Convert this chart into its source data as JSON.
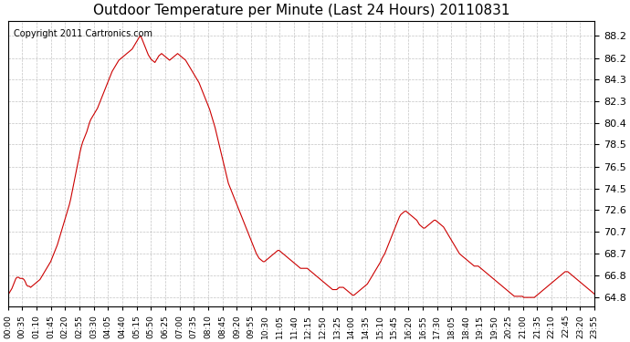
{
  "title": "Outdoor Temperature per Minute (Last 24 Hours) 20110831",
  "copyright": "Copyright 2011 Cartronics.com",
  "line_color": "#cc0000",
  "background_color": "#ffffff",
  "grid_color": "#aaaaaa",
  "yticks": [
    64.8,
    66.8,
    68.7,
    70.7,
    72.6,
    74.5,
    76.5,
    78.5,
    80.4,
    82.3,
    84.3,
    86.2,
    88.2
  ],
  "ylim": [
    64.0,
    89.5
  ],
  "xtick_labels": [
    "00:00",
    "00:35",
    "01:10",
    "01:45",
    "02:20",
    "02:55",
    "03:30",
    "04:05",
    "04:40",
    "05:15",
    "05:50",
    "06:25",
    "07:00",
    "07:35",
    "08:10",
    "08:45",
    "09:20",
    "09:55",
    "10:30",
    "11:05",
    "11:40",
    "12:15",
    "12:50",
    "13:25",
    "14:00",
    "14:35",
    "15:10",
    "15:45",
    "16:20",
    "16:55",
    "17:30",
    "18:05",
    "18:40",
    "19:15",
    "19:50",
    "20:25",
    "21:00",
    "21:35",
    "22:10",
    "22:45",
    "23:20",
    "23:55"
  ],
  "curve": [
    65.0,
    65.2,
    65.4,
    65.6,
    65.9,
    66.2,
    66.5,
    66.6,
    66.6,
    66.5,
    66.5,
    66.5,
    66.4,
    66.2,
    65.9,
    65.8,
    65.8,
    65.7,
    65.8,
    65.9,
    66.0,
    66.1,
    66.2,
    66.3,
    66.4,
    66.6,
    66.8,
    67.0,
    67.2,
    67.4,
    67.6,
    67.8,
    68.0,
    68.3,
    68.6,
    68.9,
    69.2,
    69.5,
    69.9,
    70.3,
    70.7,
    71.1,
    71.5,
    71.9,
    72.3,
    72.7,
    73.1,
    73.6,
    74.2,
    74.8,
    75.4,
    76.0,
    76.6,
    77.2,
    77.8,
    78.3,
    78.7,
    79.0,
    79.3,
    79.6,
    80.0,
    80.4,
    80.7,
    80.9,
    81.1,
    81.3,
    81.5,
    81.7,
    82.0,
    82.3,
    82.6,
    82.9,
    83.2,
    83.5,
    83.8,
    84.1,
    84.4,
    84.7,
    85.0,
    85.2,
    85.4,
    85.6,
    85.8,
    86.0,
    86.1,
    86.2,
    86.3,
    86.4,
    86.5,
    86.6,
    86.7,
    86.8,
    86.9,
    87.0,
    87.2,
    87.4,
    87.6,
    87.8,
    88.0,
    88.2,
    88.0,
    87.7,
    87.4,
    87.1,
    86.8,
    86.5,
    86.3,
    86.1,
    86.0,
    85.9,
    85.8,
    86.0,
    86.2,
    86.4,
    86.5,
    86.6,
    86.5,
    86.4,
    86.3,
    86.2,
    86.1,
    86.0,
    86.1,
    86.2,
    86.3,
    86.4,
    86.5,
    86.6,
    86.5,
    86.4,
    86.3,
    86.2,
    86.1,
    86.0,
    85.8,
    85.6,
    85.4,
    85.2,
    85.0,
    84.8,
    84.6,
    84.4,
    84.2,
    84.0,
    83.7,
    83.4,
    83.1,
    82.8,
    82.5,
    82.2,
    81.9,
    81.6,
    81.2,
    80.8,
    80.4,
    80.0,
    79.5,
    79.0,
    78.5,
    78.0,
    77.5,
    77.0,
    76.5,
    76.0,
    75.5,
    75.0,
    74.7,
    74.4,
    74.1,
    73.8,
    73.5,
    73.2,
    72.9,
    72.6,
    72.3,
    72.0,
    71.7,
    71.4,
    71.1,
    70.8,
    70.5,
    70.2,
    69.9,
    69.6,
    69.3,
    69.0,
    68.7,
    68.5,
    68.3,
    68.2,
    68.1,
    68.0,
    68.0,
    68.1,
    68.2,
    68.3,
    68.4,
    68.5,
    68.6,
    68.7,
    68.8,
    68.9,
    69.0,
    69.0,
    68.9,
    68.8,
    68.7,
    68.6,
    68.5,
    68.4,
    68.3,
    68.2,
    68.1,
    68.0,
    67.9,
    67.8,
    67.7,
    67.6,
    67.5,
    67.4,
    67.4,
    67.4,
    67.4,
    67.4,
    67.4,
    67.3,
    67.2,
    67.1,
    67.0,
    66.9,
    66.8,
    66.7,
    66.6,
    66.5,
    66.4,
    66.3,
    66.2,
    66.1,
    66.0,
    65.9,
    65.8,
    65.7,
    65.6,
    65.5,
    65.5,
    65.5,
    65.5,
    65.6,
    65.7,
    65.7,
    65.7,
    65.7,
    65.6,
    65.5,
    65.4,
    65.3,
    65.2,
    65.1,
    65.0,
    65.0,
    65.1,
    65.2,
    65.3,
    65.4,
    65.5,
    65.6,
    65.7,
    65.8,
    65.9,
    66.0,
    66.2,
    66.4,
    66.6,
    66.8,
    67.0,
    67.2,
    67.4,
    67.6,
    67.8,
    68.0,
    68.3,
    68.5,
    68.7,
    69.0,
    69.3,
    69.6,
    69.9,
    70.2,
    70.5,
    70.8,
    71.1,
    71.4,
    71.7,
    72.0,
    72.2,
    72.3,
    72.4,
    72.5,
    72.5,
    72.4,
    72.3,
    72.2,
    72.1,
    72.0,
    71.9,
    71.8,
    71.7,
    71.5,
    71.3,
    71.2,
    71.1,
    71.0,
    71.0,
    71.1,
    71.2,
    71.3,
    71.4,
    71.5,
    71.6,
    71.7,
    71.7,
    71.6,
    71.5,
    71.4,
    71.3,
    71.2,
    71.1,
    70.9,
    70.7,
    70.5,
    70.3,
    70.1,
    69.9,
    69.7,
    69.5,
    69.3,
    69.1,
    68.9,
    68.7,
    68.6,
    68.5,
    68.4,
    68.3,
    68.2,
    68.1,
    68.0,
    67.9,
    67.8,
    67.7,
    67.6,
    67.6,
    67.6,
    67.6,
    67.5,
    67.4,
    67.3,
    67.2,
    67.1,
    67.0,
    66.9,
    66.8,
    66.7,
    66.6,
    66.5,
    66.4,
    66.3,
    66.2,
    66.1,
    66.0,
    65.9,
    65.8,
    65.7,
    65.6,
    65.5,
    65.4,
    65.3,
    65.2,
    65.1,
    65.0,
    64.9,
    64.9,
    64.9,
    64.9,
    64.9,
    64.9,
    64.9,
    64.8,
    64.8,
    64.8,
    64.8,
    64.8,
    64.8,
    64.8,
    64.8,
    64.8,
    64.9,
    65.0,
    65.1,
    65.2,
    65.3,
    65.4,
    65.5,
    65.6,
    65.7,
    65.8,
    65.9,
    66.0,
    66.1,
    66.2,
    66.3,
    66.4,
    66.5,
    66.6,
    66.7,
    66.8,
    66.9,
    67.0,
    67.1,
    67.1,
    67.1,
    67.0,
    66.9,
    66.8,
    66.7,
    66.6,
    66.5,
    66.4,
    66.3,
    66.2,
    66.1,
    66.0,
    65.9,
    65.8,
    65.7,
    65.6,
    65.5,
    65.4,
    65.3,
    65.2,
    65.1
  ]
}
